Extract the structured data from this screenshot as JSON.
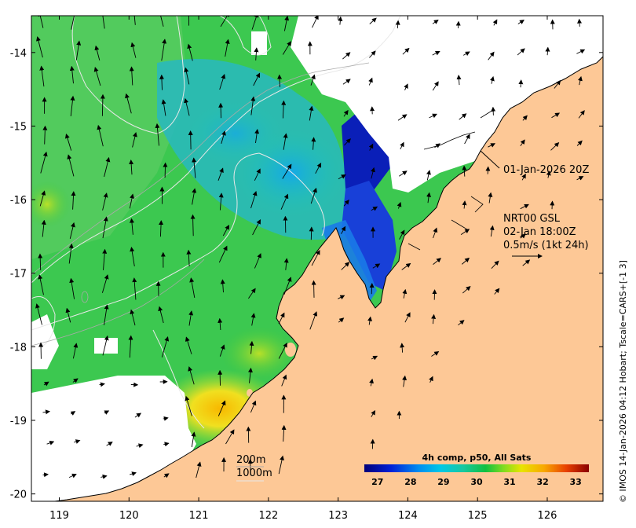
{
  "map": {
    "x_ticks": [
      "119",
      "120",
      "121",
      "122",
      "123",
      "124",
      "125",
      "126"
    ],
    "y_ticks": [
      "-14",
      "-15",
      "-16",
      "-17",
      "-18",
      "-19",
      "-20"
    ],
    "x_range": [
      118.6,
      126.8
    ],
    "y_range": [
      -20.1,
      -13.5
    ],
    "colors": {
      "land": "#fdc896",
      "no_data": "#ffffff",
      "arrow": "#000000",
      "bathymetry": "#d8d8d8"
    }
  },
  "annotations": {
    "timestamp": "01-Jan-2026 20Z",
    "current_product": "NRT00 GSL",
    "current_time": "02-Jan 18:00Z",
    "arrow_scale": "0.5m/s (1kt 24h)"
  },
  "bathymetry_legend": {
    "depth1": "200m",
    "depth2": "1000m"
  },
  "colorbar": {
    "title": "4h comp, p50, All Sats",
    "ticks": [
      "27",
      "28",
      "29",
      "30",
      "31",
      "32",
      "33"
    ],
    "range": [
      26.6,
      33.4
    ]
  },
  "credit": "© IMOS 14-Jan-2026 04:12 Hobart; Tscale=CARS+[-1 3]"
}
